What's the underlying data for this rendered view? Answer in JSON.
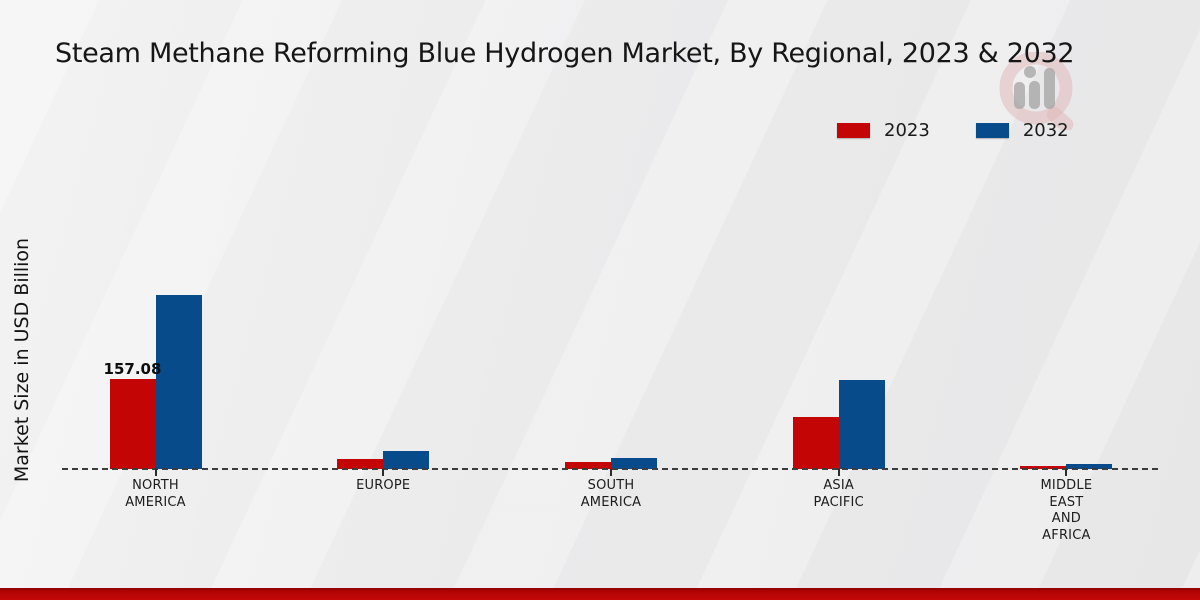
{
  "page_title": "Steam Methane Reforming Blue Hydrogen Market, By Regional, 2023 & 2032",
  "watermark_icon": "magnifier-bar-chart-logo-icon",
  "chart_data": {
    "type": "bar",
    "title": "Steam Methane Reforming Blue Hydrogen Market, By Regional, 2023 & 2032",
    "xlabel": "",
    "ylabel": "Market Size in USD Billion",
    "categories": [
      "NORTH AMERICA",
      "EUROPE",
      "SOUTH AMERICA",
      "ASIA PACIFIC",
      "MIDDLE EAST AND AFRICA"
    ],
    "category_label_lines": [
      "NORTH\nAMERICA",
      "EUROPE",
      "SOUTH\nAMERICA",
      "ASIA\nPACIFIC",
      "MIDDLE\nEAST\nAND\nAFRICA"
    ],
    "series": [
      {
        "name": "2023",
        "color": "#c40505",
        "values": [
          157.08,
          17.5,
          12.2,
          90.8,
          5.2
        ]
      },
      {
        "name": "2032",
        "color": "#084b8a",
        "values": [
          303.7,
          31.4,
          19.2,
          155.3,
          8.7
        ]
      }
    ],
    "data_labels": [
      {
        "series_index": 0,
        "category_index": 0,
        "text": "157.08"
      }
    ],
    "ylim": [
      0,
      320
    ],
    "grid": false,
    "baseline_style": "dashed",
    "legend_position": "top-right",
    "accent_colors": {
      "footer_band": "#c50808",
      "axis_line": "#3c3c3c"
    }
  }
}
